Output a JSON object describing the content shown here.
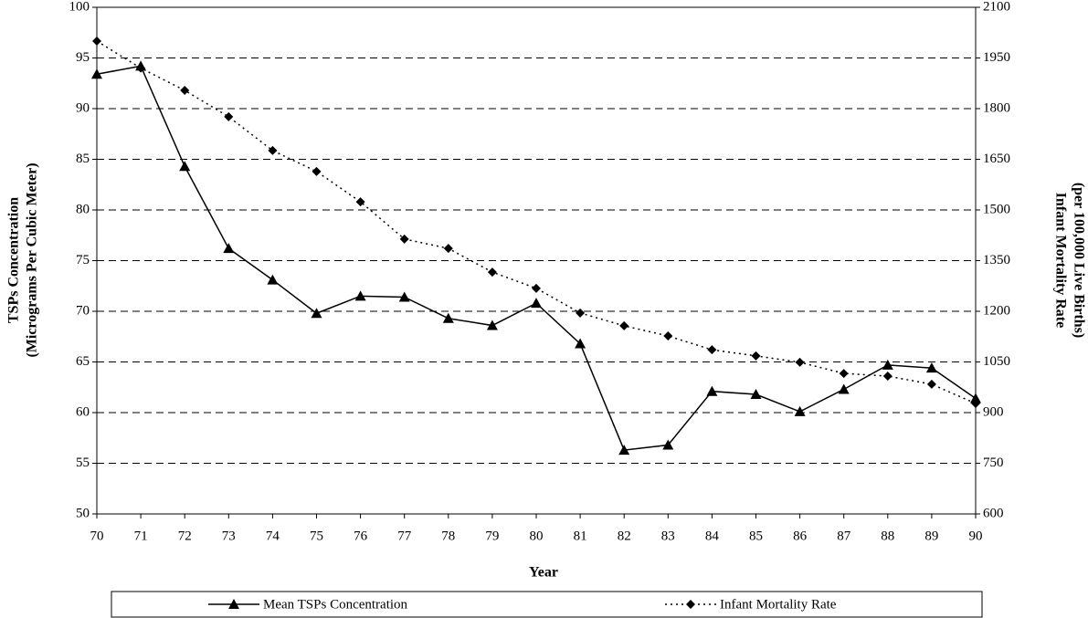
{
  "chart_data": {
    "type": "line",
    "y_label": [
      "TSPs Concentration",
      "(Micrograms Per Cubic Meter)"
    ],
    "y2_label": [
      "Infant Mortality Rate",
      "(per 100,000 Live Births)"
    ],
    "x_label": "Year",
    "categories": [
      "70",
      "71",
      "72",
      "73",
      "74",
      "75",
      "76",
      "77",
      "78",
      "79",
      "80",
      "81",
      "82",
      "83",
      "84",
      "85",
      "86",
      "87",
      "88",
      "89",
      "90"
    ],
    "ylim": [
      50,
      100
    ],
    "yticks": [
      50,
      55,
      60,
      65,
      70,
      75,
      80,
      85,
      90,
      95,
      100
    ],
    "y2lim": [
      600,
      2100
    ],
    "y2ticks": [
      600,
      750,
      900,
      1050,
      1200,
      1350,
      1500,
      1650,
      1800,
      1950,
      2100
    ],
    "grid": true,
    "series": [
      {
        "name": "Mean TSPs Concentration",
        "color": "#000000",
        "marker": "triangle",
        "dash": "solid",
        "values": [
          93.4,
          94.2,
          84.3,
          76.2,
          73.1,
          69.8,
          71.5,
          71.4,
          69.3,
          68.6,
          70.8,
          66.8,
          56.3,
          56.8,
          62.1,
          61.8,
          60.1,
          62.3,
          64.7,
          64.4,
          61.4
        ]
      },
      {
        "name": "Infant Mortality Rate",
        "color": "#000000",
        "marker": "diamond",
        "dash": "dotted",
        "axis": "y2",
        "values": [
          2000,
          1920,
          1854,
          1776,
          1676,
          1614,
          1524,
          1414,
          1386,
          1316,
          1268,
          1195,
          1157,
          1127,
          1086,
          1068,
          1049,
          1016,
          1008,
          984,
          927
        ]
      }
    ]
  }
}
